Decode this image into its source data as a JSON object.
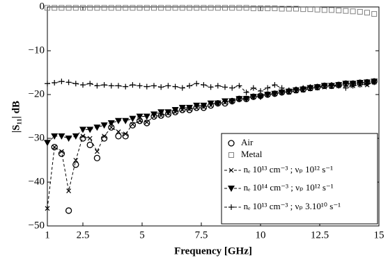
{
  "chart_data": {
    "type": "line",
    "xlabel": "Frequency [GHz]",
    "ylabel": "|S₁₁| dB",
    "x": [
      1.0,
      1.3,
      1.6,
      1.9,
      2.2,
      2.5,
      2.8,
      3.1,
      3.4,
      3.7,
      4.0,
      4.3,
      4.6,
      4.9,
      5.2,
      5.5,
      5.8,
      6.1,
      6.4,
      6.7,
      7.0,
      7.3,
      7.6,
      7.9,
      8.2,
      8.5,
      8.8,
      9.1,
      9.4,
      9.7,
      10.0,
      10.3,
      10.6,
      10.9,
      11.2,
      11.5,
      11.8,
      12.1,
      12.4,
      12.7,
      13.0,
      13.3,
      13.6,
      13.9,
      14.2,
      14.5,
      14.8
    ],
    "series": [
      {
        "name": "Air",
        "color": "#000000",
        "marker": "circle",
        "linestyle": "none",
        "values": [
          null,
          -32,
          -33.5,
          -46.5,
          -36,
          -30,
          -31.5,
          -34.5,
          -30,
          -27.5,
          -29.5,
          -29.5,
          -27,
          -26,
          -26.5,
          -25,
          -24.8,
          -24.5,
          -24,
          -23.5,
          -23.5,
          -23,
          -23,
          -22.5,
          -22,
          -22,
          -21.5,
          -21,
          -21,
          -20.5,
          -20.3,
          -20,
          -19.8,
          -19.5,
          -19.3,
          -19,
          -18.8,
          -18.5,
          -18.3,
          -18,
          -18,
          -17.8,
          -17.5,
          -17.5,
          -17.3,
          -17.2,
          -17
        ]
      },
      {
        "name": "Metal",
        "color": "#808080",
        "marker": "square",
        "linestyle": "none",
        "values": [
          -0.2,
          -0.2,
          -0.2,
          -0.2,
          -0.2,
          -0.2,
          -0.2,
          -0.2,
          -0.2,
          -0.2,
          -0.2,
          -0.2,
          -0.2,
          -0.2,
          -0.2,
          -0.2,
          -0.2,
          -0.2,
          -0.2,
          -0.2,
          -0.2,
          -0.2,
          -0.2,
          -0.2,
          -0.2,
          -0.2,
          -0.2,
          -0.2,
          -0.2,
          -0.3,
          -0.3,
          -0.3,
          -0.3,
          -0.4,
          -0.4,
          -0.4,
          -0.5,
          -0.5,
          -0.6,
          -0.7,
          -0.7,
          -0.8,
          -0.9,
          -1,
          -1.1,
          -1.3,
          -1.6
        ]
      },
      {
        "name": "- nₑ 10¹³ cm⁻³ ; νₚ 10¹² s⁻¹",
        "color": "#000000",
        "marker": "x",
        "linestyle": "dashed",
        "values": [
          -46,
          -32,
          -33,
          -42,
          -35,
          -29.5,
          -30,
          -33,
          -29.5,
          -27.5,
          -28.5,
          -29,
          -26.8,
          -26,
          -26.3,
          -25,
          -24.8,
          -24.3,
          -24,
          -23.5,
          -23.3,
          -23,
          -22.8,
          -22.5,
          -22,
          -21.8,
          -21.5,
          -21,
          -20.8,
          -20.5,
          -20.3,
          -20,
          -19.8,
          -19.5,
          -19.5,
          -19.2,
          -19,
          -18.7,
          -18.5,
          -18.3,
          -18.2,
          -18,
          -17.8,
          -18,
          -17.8,
          -17.8,
          -17.2
        ]
      },
      {
        "name": "- nₑ 10¹⁴ cm⁻³ ; νₚ 10¹² s⁻¹",
        "color": "#000000",
        "marker": "triangle",
        "linestyle": "dashed",
        "values": [
          -31,
          -29.5,
          -29.5,
          -30,
          -29.5,
          -28,
          -28,
          -27.5,
          -27,
          -26.5,
          -26,
          -26,
          -25.5,
          -25,
          -25,
          -24.5,
          -24,
          -24,
          -23.5,
          -23,
          -23,
          -22.5,
          -22.5,
          -22,
          -22,
          -21.5,
          -21.5,
          -21,
          -21,
          -20.5,
          -20.5,
          -20,
          -19.8,
          -19.5,
          -19.3,
          -19,
          -18.8,
          -18.5,
          -18.3,
          -18,
          -18,
          -17.8,
          -17.5,
          -17.5,
          -17.3,
          -17.2,
          -17
        ]
      },
      {
        "name": "- nₑ 10¹³ cm⁻³ ; νₚ 3.10¹⁰ s⁻¹",
        "color": "#000000",
        "marker": "plus",
        "linestyle": "dashed",
        "values": [
          -17.5,
          -17.3,
          -17,
          -17.2,
          -17.5,
          -17.8,
          -17.5,
          -18,
          -17.8,
          -18,
          -18,
          -18.2,
          -17.8,
          -18,
          -18.2,
          -18,
          -18.3,
          -18,
          -18.2,
          -18.5,
          -18,
          -17.5,
          -17.8,
          -18.3,
          -18,
          -18.3,
          -18.5,
          -18,
          -19.5,
          -18.5,
          -19.2,
          -18.5,
          -17.8,
          -18.5,
          -19,
          -18.8,
          -18.5,
          -18.3,
          -18.2,
          -18,
          -17.8,
          -18,
          -18.5,
          -18,
          -17.8,
          -17.5,
          -17.2
        ]
      }
    ],
    "xlim": [
      1,
      15
    ],
    "xticks": [
      1,
      2.5,
      5,
      7.5,
      10,
      12.5,
      15
    ],
    "ylim": [
      -50,
      0
    ],
    "yticks": [
      {
        "value": -50,
        "label": "−50"
      },
      {
        "value": -40,
        "label": "−40"
      },
      {
        "value": -30,
        "label": "−30"
      },
      {
        "value": -20,
        "label": "−20"
      },
      {
        "value": -10,
        "label": "−10"
      },
      0
    ],
    "legend": "lower right"
  }
}
